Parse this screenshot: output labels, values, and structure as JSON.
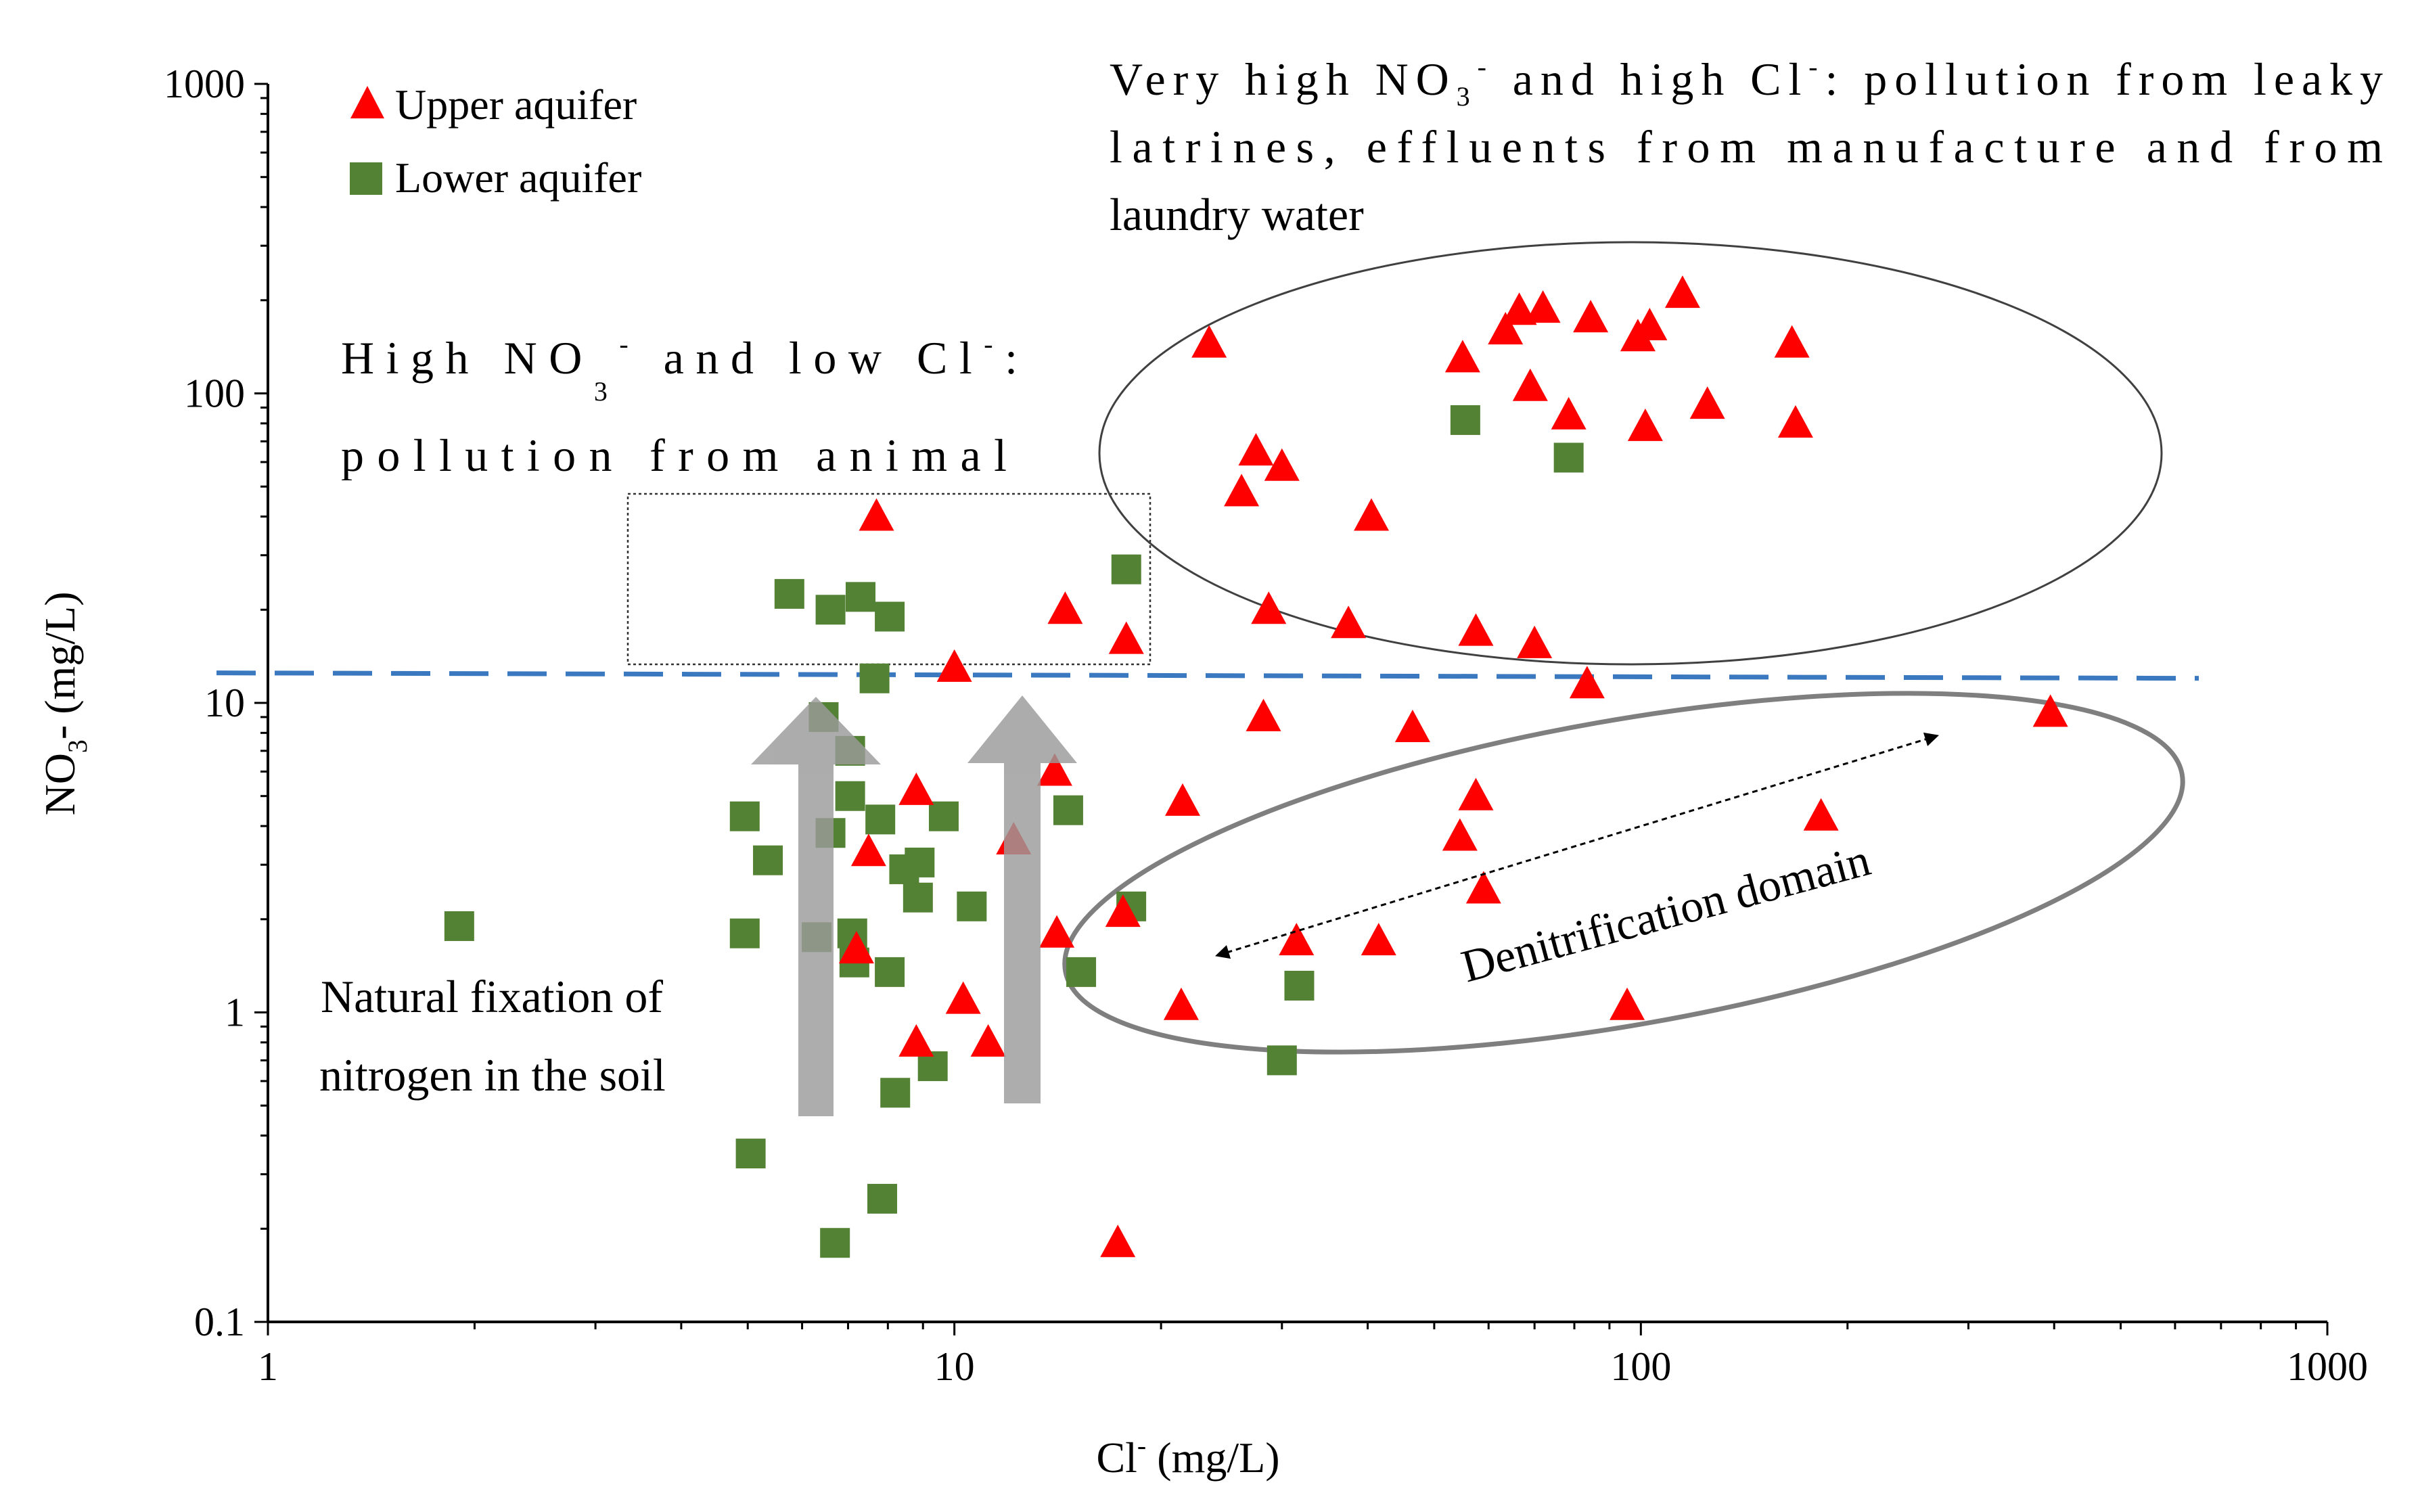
{
  "chart_data": {
    "type": "scatter",
    "xscale": "log",
    "yscale": "log",
    "xlim": [
      1,
      1000
    ],
    "ylim": [
      0.1,
      1000
    ],
    "x_ticks": [
      "1",
      "10",
      "100",
      "1000"
    ],
    "y_ticks": [
      "0.1",
      "1",
      "10",
      "100",
      "1000"
    ],
    "xlabel": {
      "base": "Cl",
      "sup": "-",
      "rest": " (mg/L)"
    },
    "ylabel": {
      "base": "NO",
      "sub": "3",
      "rest": "- (mg/L)"
    },
    "legend": {
      "position": "top-left"
    },
    "grid": false,
    "threshold_line": {
      "y": 12.5,
      "style": "dashed",
      "color": "#3a78bf"
    },
    "series": [
      {
        "name": "Upper aquifer",
        "marker": "triangle",
        "color": "#ff0000",
        "points": [
          [
            7.7,
            40
          ],
          [
            10,
            13
          ],
          [
            7.5,
            3.3
          ],
          [
            7.2,
            1.6
          ],
          [
            8.8,
            5.2
          ],
          [
            8.8,
            0.8
          ],
          [
            10.3,
            1.1
          ],
          [
            11.2,
            0.8
          ],
          [
            12.2,
            3.6
          ],
          [
            14,
            6
          ],
          [
            14.5,
            20
          ],
          [
            14.1,
            1.8
          ],
          [
            17.8,
            16
          ],
          [
            17.6,
            2.1
          ],
          [
            17.3,
            0.18
          ],
          [
            21.5,
            4.8
          ],
          [
            21.4,
            1.05
          ],
          [
            23.5,
            145
          ],
          [
            27.5,
            65
          ],
          [
            26.2,
            48
          ],
          [
            28.7,
            20
          ],
          [
            28.2,
            9
          ],
          [
            30,
            58
          ],
          [
            31.5,
            1.7
          ],
          [
            37.5,
            18
          ],
          [
            40.5,
            40
          ],
          [
            41.5,
            1.7
          ],
          [
            46.5,
            8.3
          ],
          [
            55,
            130
          ],
          [
            54.5,
            3.7
          ],
          [
            57.5,
            17
          ],
          [
            57.5,
            5
          ],
          [
            59,
            2.5
          ],
          [
            63.5,
            160
          ],
          [
            66.5,
            185
          ],
          [
            69,
            105
          ],
          [
            72,
            188
          ],
          [
            70,
            15.5
          ],
          [
            78.5,
            85
          ],
          [
            83.5,
            11.5
          ],
          [
            84.5,
            175
          ],
          [
            99,
            152
          ],
          [
            103,
            165
          ],
          [
            101.5,
            78
          ],
          [
            95.5,
            1.05
          ],
          [
            115,
            210
          ],
          [
            125,
            92
          ],
          [
            166,
            145
          ],
          [
            168,
            80
          ],
          [
            183,
            4.3
          ],
          [
            395,
            9.3
          ]
        ]
      },
      {
        "name": "Lower aquifer",
        "marker": "square",
        "color": "#548235",
        "points": [
          [
            1.9,
            1.9
          ],
          [
            4.95,
            4.3
          ],
          [
            4.95,
            1.8
          ],
          [
            5.05,
            0.35
          ],
          [
            5.35,
            3.1
          ],
          [
            5.75,
            22.5
          ],
          [
            6.3,
            1.75
          ],
          [
            6.45,
            9
          ],
          [
            6.6,
            20
          ],
          [
            6.6,
            3.8
          ],
          [
            6.7,
            0.18
          ],
          [
            7.05,
            7
          ],
          [
            7.05,
            5
          ],
          [
            7.1,
            1.8
          ],
          [
            7.15,
            1.45
          ],
          [
            7.3,
            22
          ],
          [
            7.65,
            12
          ],
          [
            7.8,
            4.2
          ],
          [
            7.85,
            0.25
          ],
          [
            8.05,
            19
          ],
          [
            8.05,
            1.35
          ],
          [
            8.2,
            0.55
          ],
          [
            8.45,
            2.9
          ],
          [
            8.9,
            3.05
          ],
          [
            8.85,
            2.35
          ],
          [
            9.3,
            0.67
          ],
          [
            9.65,
            4.3
          ],
          [
            10.6,
            2.2
          ],
          [
            14.65,
            4.5
          ],
          [
            15.3,
            1.35
          ],
          [
            17.8,
            27
          ],
          [
            18.1,
            2.2
          ],
          [
            30,
            0.7
          ],
          [
            31.8,
            1.22
          ],
          [
            55.5,
            82
          ],
          [
            78.5,
            62
          ]
        ]
      }
    ],
    "annotations": {
      "very_high": {
        "line1": [
          "Very high NO",
          "3",
          "-",
          " and high Cl",
          "-",
          ": pollution from leaky"
        ],
        "line2": "latrines, effluents from manufacture and from",
        "line3": "laundry water"
      },
      "high_low": {
        "line1": [
          "High NO",
          "3",
          "-",
          " and low Cl",
          "-",
          ":"
        ],
        "line2": "pollution from animal"
      },
      "natural": {
        "line1": "Natural fixation of",
        "line2": "nitrogen in the soil"
      },
      "denitrification": "Denitrification domain"
    }
  }
}
